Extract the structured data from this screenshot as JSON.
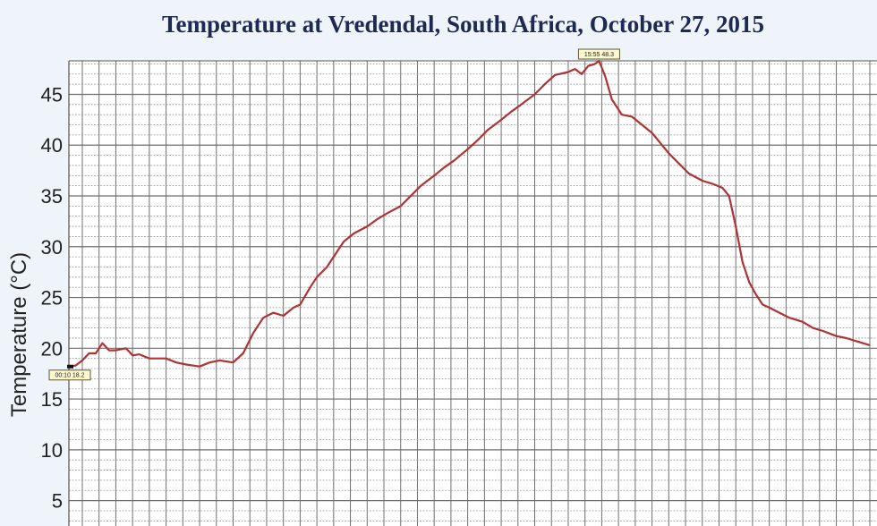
{
  "chart_data": {
    "type": "line",
    "title": "Temperature at Vredendal, South Africa, October 27, 2015",
    "ylabel": "Temperature (°C)",
    "xlabel": "",
    "ylim": [
      2.5,
      48.3
    ],
    "xlim": [
      0.1,
      24.0
    ],
    "yticks": [
      5,
      10,
      15,
      20,
      25,
      30,
      35,
      40,
      45
    ],
    "grid": true,
    "colors": {
      "line": "#b03232",
      "grid_major": "#6e6e6e",
      "grid_minor": "#9a9a9a"
    },
    "series": [
      {
        "x": [
          0.1,
          0.3,
          0.5,
          0.7,
          0.9,
          1.0,
          1.1,
          1.3,
          1.5,
          1.8,
          2.0,
          2.2,
          2.5,
          2.8,
          3.0,
          3.3,
          3.6,
          4.0,
          4.3,
          4.6,
          5.0,
          5.3,
          5.6,
          5.9,
          6.2,
          6.5,
          6.8,
          7.0,
          7.3,
          7.5,
          7.8,
          8.0,
          8.3,
          8.6,
          9.0,
          9.3,
          9.6,
          10.0,
          10.3,
          10.6,
          11.0,
          11.3,
          11.6,
          12.0,
          12.3,
          12.6,
          13.0,
          13.3,
          13.6,
          14.0,
          14.3,
          14.6,
          15.0,
          15.2,
          15.4,
          15.6,
          15.8,
          15.92,
          16.1,
          16.3,
          16.6,
          16.9,
          17.2,
          17.5,
          17.8,
          18.0,
          18.3,
          18.6,
          19.0,
          19.3,
          19.6,
          19.8,
          20.0,
          20.2,
          20.4,
          20.6,
          20.8,
          21.0,
          21.3,
          21.6,
          22.0,
          22.3,
          22.6,
          23.0,
          23.3,
          23.6,
          24.0
        ],
        "y": [
          18.2,
          18.3,
          18.8,
          19.5,
          19.5,
          20.0,
          20.5,
          19.8,
          19.8,
          20.0,
          19.3,
          19.4,
          19.0,
          19.0,
          19.0,
          18.6,
          18.4,
          18.2,
          18.6,
          18.8,
          18.6,
          19.5,
          21.5,
          23.0,
          23.5,
          23.2,
          24.0,
          24.3,
          26.0,
          27.0,
          28.0,
          29.0,
          30.5,
          31.3,
          32.0,
          32.7,
          33.3,
          34.0,
          35.0,
          36.0,
          37.0,
          37.8,
          38.5,
          39.6,
          40.5,
          41.5,
          42.5,
          43.3,
          44.0,
          45.0,
          46.0,
          46.9,
          47.2,
          47.5,
          47.0,
          47.8,
          48.0,
          48.3,
          46.8,
          44.5,
          43.0,
          42.8,
          42.0,
          41.2,
          40.0,
          39.2,
          38.2,
          37.2,
          36.5,
          36.2,
          35.8,
          35.0,
          32.0,
          28.5,
          26.5,
          25.3,
          24.3,
          24.0,
          23.5,
          23.0,
          22.6,
          22.0,
          21.7,
          21.2,
          21.0,
          20.7,
          20.3
        ]
      }
    ],
    "annotations": [
      {
        "label": "00:10 18.2",
        "x": 0.1,
        "y": 18.2
      },
      {
        "label": "15:55 48.3",
        "x": 15.92,
        "y": 48.3
      }
    ]
  }
}
